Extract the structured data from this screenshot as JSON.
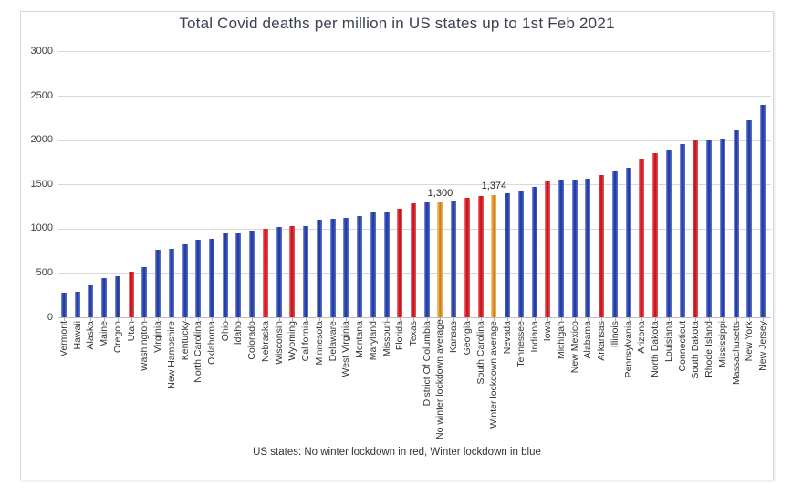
{
  "title": "Total Covid deaths per million in US states up to 1st Feb 2021",
  "caption": "US states: No winter lockdown in red, Winter lockdown in blue",
  "colors": {
    "winter_lockdown_blue": "#2a47be",
    "no_winter_lockdown_red": "#e91c23",
    "average_orange": "#f0a22e",
    "gridline": "#d9d9d9",
    "axis_line": "#bfbfbf",
    "title_text": "#3a4150",
    "tick_text": "#3f3f3f"
  },
  "chart_data": {
    "type": "bar",
    "title": "Total Covid deaths per million in US states up to 1st Feb 2021",
    "xlabel": "US states: No winter lockdown in red, Winter lockdown in blue",
    "ylabel": "",
    "ylim": [
      0,
      3000
    ],
    "yticks": [
      0,
      500,
      1000,
      1500,
      2000,
      2500,
      3000
    ],
    "grid": true,
    "legend_position": "none",
    "groups": {
      "winter_lockdown": "Winter lockdown (blue)",
      "no_winter_lockdown": "No winter lockdown (red)",
      "average": "Average (orange)"
    },
    "bars": [
      {
        "label": "Vermont",
        "value": 275,
        "group": "winter_lockdown"
      },
      {
        "label": "Hawaii",
        "value": 288,
        "group": "winter_lockdown"
      },
      {
        "label": "Alaska",
        "value": 357,
        "group": "winter_lockdown"
      },
      {
        "label": "Maine",
        "value": 440,
        "group": "winter_lockdown"
      },
      {
        "label": "Oregon",
        "value": 463,
        "group": "winter_lockdown"
      },
      {
        "label": "Utah",
        "value": 515,
        "group": "no_winter_lockdown"
      },
      {
        "label": "Washington",
        "value": 566,
        "group": "winter_lockdown"
      },
      {
        "label": "Virginia",
        "value": 758,
        "group": "winter_lockdown"
      },
      {
        "label": "New Hampshire",
        "value": 772,
        "group": "winter_lockdown"
      },
      {
        "label": "Kentucky",
        "value": 827,
        "group": "winter_lockdown"
      },
      {
        "label": "North Carolina",
        "value": 870,
        "group": "winter_lockdown"
      },
      {
        "label": "Oklahoma",
        "value": 886,
        "group": "winter_lockdown"
      },
      {
        "label": "Ohio",
        "value": 950,
        "group": "winter_lockdown"
      },
      {
        "label": "Idaho",
        "value": 956,
        "group": "winter_lockdown"
      },
      {
        "label": "Colorado",
        "value": 975,
        "group": "winter_lockdown"
      },
      {
        "label": "Nebraska",
        "value": 1000,
        "group": "no_winter_lockdown"
      },
      {
        "label": "Wisconsin",
        "value": 1016,
        "group": "winter_lockdown"
      },
      {
        "label": "Wyoming",
        "value": 1025,
        "group": "no_winter_lockdown"
      },
      {
        "label": "California",
        "value": 1031,
        "group": "winter_lockdown"
      },
      {
        "label": "Minnesota",
        "value": 1104,
        "group": "winter_lockdown"
      },
      {
        "label": "Delaware",
        "value": 1114,
        "group": "winter_lockdown"
      },
      {
        "label": "West Virginia",
        "value": 1121,
        "group": "winter_lockdown"
      },
      {
        "label": "Montana",
        "value": 1139,
        "group": "winter_lockdown"
      },
      {
        "label": "Maryland",
        "value": 1180,
        "group": "winter_lockdown"
      },
      {
        "label": "Missouri",
        "value": 1193,
        "group": "winter_lockdown"
      },
      {
        "label": "Florida",
        "value": 1224,
        "group": "no_winter_lockdown"
      },
      {
        "label": "Texas",
        "value": 1283,
        "group": "no_winter_lockdown"
      },
      {
        "label": "District Of Columbia",
        "value": 1293,
        "group": "winter_lockdown"
      },
      {
        "label": "No winter lockdown average",
        "value": 1300,
        "group": "average",
        "value_label": "1,300"
      },
      {
        "label": "Kansas",
        "value": 1320,
        "group": "winter_lockdown"
      },
      {
        "label": "Georgia",
        "value": 1350,
        "group": "no_winter_lockdown"
      },
      {
        "label": "South Carolina",
        "value": 1365,
        "group": "no_winter_lockdown"
      },
      {
        "label": "Winter lockdown average",
        "value": 1374,
        "group": "average",
        "value_label": "1,374"
      },
      {
        "label": "Nevada",
        "value": 1400,
        "group": "winter_lockdown"
      },
      {
        "label": "Tennessee",
        "value": 1415,
        "group": "winter_lockdown"
      },
      {
        "label": "Indiana",
        "value": 1470,
        "group": "winter_lockdown"
      },
      {
        "label": "Iowa",
        "value": 1545,
        "group": "no_winter_lockdown"
      },
      {
        "label": "Michigan",
        "value": 1550,
        "group": "winter_lockdown"
      },
      {
        "label": "New Mexico",
        "value": 1555,
        "group": "winter_lockdown"
      },
      {
        "label": "Alabama",
        "value": 1560,
        "group": "winter_lockdown"
      },
      {
        "label": "Arkansas",
        "value": 1605,
        "group": "no_winter_lockdown"
      },
      {
        "label": "Illinois",
        "value": 1656,
        "group": "winter_lockdown"
      },
      {
        "label": "Pennsylvania",
        "value": 1687,
        "group": "winter_lockdown"
      },
      {
        "label": "Arizona",
        "value": 1790,
        "group": "no_winter_lockdown"
      },
      {
        "label": "North Dakota",
        "value": 1852,
        "group": "no_winter_lockdown"
      },
      {
        "label": "Louisiana",
        "value": 1893,
        "group": "winter_lockdown"
      },
      {
        "label": "Connecticut",
        "value": 1955,
        "group": "winter_lockdown"
      },
      {
        "label": "South Dakota",
        "value": 1996,
        "group": "no_winter_lockdown"
      },
      {
        "label": "Rhode Island",
        "value": 2005,
        "group": "winter_lockdown"
      },
      {
        "label": "Mississippi",
        "value": 2020,
        "group": "winter_lockdown"
      },
      {
        "label": "Massachusetts",
        "value": 2110,
        "group": "winter_lockdown"
      },
      {
        "label": "New York",
        "value": 2225,
        "group": "winter_lockdown"
      },
      {
        "label": "New Jersey",
        "value": 2400,
        "group": "winter_lockdown"
      }
    ]
  }
}
